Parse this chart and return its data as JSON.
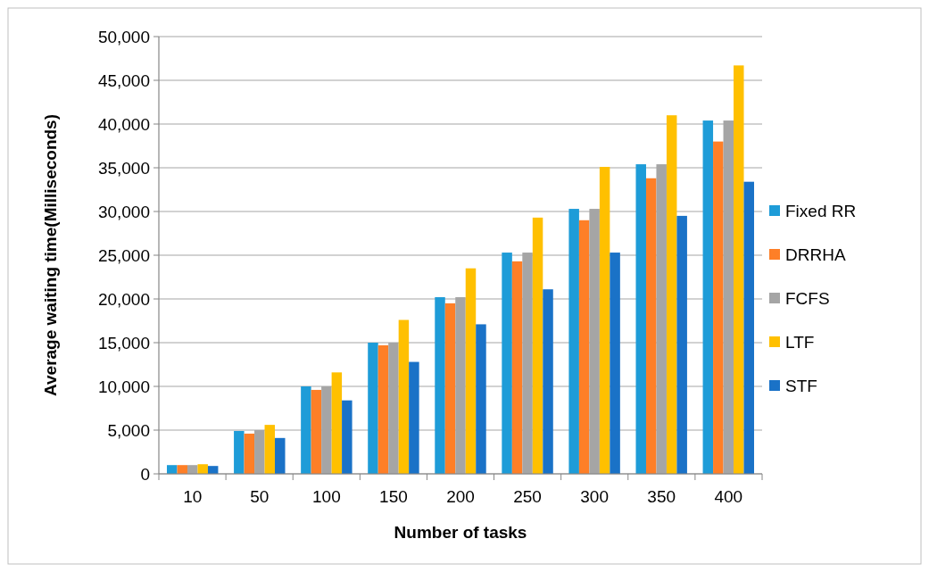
{
  "chart_data": {
    "type": "bar",
    "xlabel": "Number of tasks",
    "ylabel": "Average waiting time(Milliseconds)",
    "categories": [
      "10",
      "50",
      "100",
      "150",
      "200",
      "250",
      "300",
      "350",
      "400"
    ],
    "series": [
      {
        "name": "Fixed RR",
        "color": "#1e9cd8",
        "values": [
          1000,
          4900,
          10000,
          15000,
          20200,
          25300,
          30300,
          35400,
          40400
        ]
      },
      {
        "name": "DRRHA",
        "color": "#fe7f27",
        "values": [
          1000,
          4600,
          9600,
          14700,
          19500,
          24300,
          29000,
          33800,
          38000
        ]
      },
      {
        "name": "FCFS",
        "color": "#a5a5a5",
        "values": [
          1000,
          5000,
          10000,
          15000,
          20200,
          25300,
          30300,
          35400,
          40400
        ]
      },
      {
        "name": "LTF",
        "color": "#ffc000",
        "values": [
          1100,
          5600,
          11600,
          17600,
          23500,
          29300,
          35100,
          41000,
          46700
        ]
      },
      {
        "name": "STF",
        "color": "#1a72c7",
        "values": [
          900,
          4100,
          8400,
          12800,
          17100,
          21100,
          25300,
          29500,
          33400
        ]
      }
    ],
    "ylim": [
      0,
      50000
    ],
    "yticks": [
      {
        "value": 0,
        "label": "0"
      },
      {
        "value": 5000,
        "label": "5,000"
      },
      {
        "value": 10000,
        "label": "10,000"
      },
      {
        "value": 15000,
        "label": "15,000"
      },
      {
        "value": 20000,
        "label": "20,000"
      },
      {
        "value": 25000,
        "label": "25,000"
      },
      {
        "value": 30000,
        "label": "30,000"
      },
      {
        "value": 35000,
        "label": "35,000"
      },
      {
        "value": 40000,
        "label": "40,000"
      },
      {
        "value": 45000,
        "label": "45,000"
      },
      {
        "value": 50000,
        "label": "50,000"
      }
    ],
    "grid": "y",
    "legend": "right"
  }
}
